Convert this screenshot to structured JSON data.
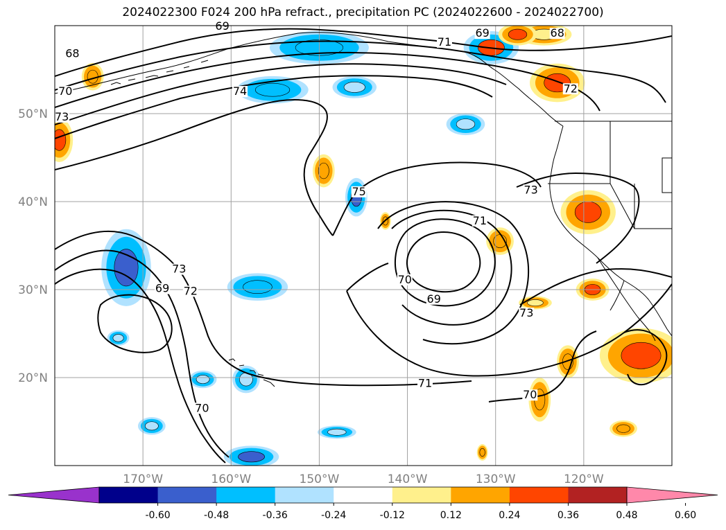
{
  "title": "2024022300 F024 200 hPa refract., precipitation PC (2024022600 - 2024022700)",
  "map": {
    "lon_range": [
      -180,
      -110
    ],
    "lat_range": [
      10,
      60
    ],
    "lon_ticks": [
      {
        "lon": -170,
        "label": "170°W"
      },
      {
        "lon": -160,
        "label": "160°W"
      },
      {
        "lon": -150,
        "label": "150°W"
      },
      {
        "lon": -140,
        "label": "140°W"
      },
      {
        "lon": -130,
        "label": "130°W"
      },
      {
        "lon": -120,
        "label": "120°W"
      }
    ],
    "lat_ticks": [
      {
        "lat": 20,
        "label": "20°N"
      },
      {
        "lat": 30,
        "label": "30°N"
      },
      {
        "lat": 40,
        "label": "40°N"
      },
      {
        "lat": 50,
        "label": "50°N"
      }
    ],
    "grid": true
  },
  "contour_labels": [
    {
      "text": "69",
      "lon": -161.0,
      "lat": 59.6
    },
    {
      "text": "68",
      "lon": -178.0,
      "lat": 56.5
    },
    {
      "text": "70",
      "lon": -178.8,
      "lat": 52.2
    },
    {
      "text": "73",
      "lon": -179.2,
      "lat": 49.3
    },
    {
      "text": "74",
      "lon": -159.0,
      "lat": 52.2
    },
    {
      "text": "71",
      "lon": -135.8,
      "lat": 57.8
    },
    {
      "text": "69",
      "lon": -131.5,
      "lat": 58.8
    },
    {
      "text": "68",
      "lon": -123.0,
      "lat": 58.8
    },
    {
      "text": "72",
      "lon": -121.5,
      "lat": 52.5
    },
    {
      "text": "75",
      "lon": -145.5,
      "lat": 40.8
    },
    {
      "text": "73",
      "lon": -126.0,
      "lat": 41.0
    },
    {
      "text": "71",
      "lon": -131.8,
      "lat": 37.5
    },
    {
      "text": "70",
      "lon": -140.3,
      "lat": 30.8
    },
    {
      "text": "69",
      "lon": -137.0,
      "lat": 28.6
    },
    {
      "text": "73",
      "lon": -126.5,
      "lat": 27.0
    },
    {
      "text": "73",
      "lon": -165.9,
      "lat": 32.0
    },
    {
      "text": "72",
      "lon": -164.6,
      "lat": 29.5
    },
    {
      "text": "69",
      "lon": -167.8,
      "lat": 29.8
    },
    {
      "text": "70",
      "lon": -163.3,
      "lat": 16.2
    },
    {
      "text": "71",
      "lon": -138.0,
      "lat": 19.0
    },
    {
      "text": "70",
      "lon": -126.1,
      "lat": 17.7
    }
  ],
  "colorbar": {
    "ticks": [
      "-0.60",
      "-0.48",
      "-0.36",
      "-0.24",
      "-0.12",
      "0.12",
      "0.24",
      "0.36",
      "0.48",
      "0.60"
    ],
    "colors": [
      "#9932cc",
      "#00008b",
      "#3a5fcd",
      "#00bfff",
      "#b0e2ff",
      "#ffffff",
      "#fff08c",
      "#ffa500",
      "#ff4500",
      "#b22222",
      "#ff88aa"
    ],
    "extend": "both"
  },
  "shading": [
    {
      "lon": -171.9,
      "lat": 32.5,
      "w": 4.5,
      "h": 7,
      "level": "-0.48"
    },
    {
      "lon": -157.0,
      "lat": 30.3,
      "w": 5.5,
      "h": 2.5,
      "level": "-0.36"
    },
    {
      "lon": -145.8,
      "lat": 40.5,
      "w": 2.0,
      "h": 3.5,
      "level": "-0.48"
    },
    {
      "lon": -155.3,
      "lat": 52.7,
      "w": 6.5,
      "h": 2.5,
      "level": "-0.36"
    },
    {
      "lon": -146.0,
      "lat": 53.0,
      "w": 4.0,
      "h": 2.0,
      "level": "-0.24"
    },
    {
      "lon": -133.4,
      "lat": 48.8,
      "w": 3.5,
      "h": 2.0,
      "level": "-0.24"
    },
    {
      "lon": -150.0,
      "lat": 57.5,
      "w": 9.0,
      "h": 3.0,
      "level": "-0.36"
    },
    {
      "lon": -158.3,
      "lat": 19.8,
      "w": 2.5,
      "h": 2.5,
      "level": "-0.24"
    },
    {
      "lon": -163.2,
      "lat": 19.8,
      "w": 2.5,
      "h": 1.6,
      "level": "-0.24"
    },
    {
      "lon": -157.7,
      "lat": 11.0,
      "w": 5.0,
      "h": 2.0,
      "level": "-0.48"
    },
    {
      "lon": -169.0,
      "lat": 14.5,
      "w": 2.5,
      "h": 1.6,
      "level": "-0.24"
    },
    {
      "lon": -172.8,
      "lat": 24.5,
      "w": 2.0,
      "h": 1.4,
      "level": "-0.24"
    },
    {
      "lon": -148.0,
      "lat": 13.8,
      "w": 3.5,
      "h": 1.2,
      "level": "-0.24"
    },
    {
      "lon": -130.5,
      "lat": 57.5,
      "w": 5.0,
      "h": 3.0,
      "level": "-0.36+"
    },
    {
      "lon": -123.0,
      "lat": 53.5,
      "w": 5.0,
      "h": 3.5,
      "level": "0.36"
    },
    {
      "lon": -175.7,
      "lat": 54.2,
      "w": 2.0,
      "h": 2.5,
      "level": "0.24"
    },
    {
      "lon": -179.5,
      "lat": 47.0,
      "w": 2.5,
      "h": 4.0,
      "level": "0.36"
    },
    {
      "lon": -119.5,
      "lat": 38.8,
      "w": 5.0,
      "h": 4.0,
      "level": "0.36"
    },
    {
      "lon": -113.5,
      "lat": 22.5,
      "w": 7.5,
      "h": 5.0,
      "level": "0.36"
    },
    {
      "lon": -125.0,
      "lat": 17.5,
      "w": 2.0,
      "h": 4.0,
      "level": "0.24"
    },
    {
      "lon": -129.5,
      "lat": 35.5,
      "w": 2.5,
      "h": 2.5,
      "level": "0.24"
    },
    {
      "lon": -119.0,
      "lat": 30.0,
      "w": 3.0,
      "h": 2.0,
      "level": "0.36"
    },
    {
      "lon": -149.5,
      "lat": 43.5,
      "w": 2.0,
      "h": 3.0,
      "level": "0.24"
    },
    {
      "lon": -121.8,
      "lat": 21.8,
      "w": 2.0,
      "h": 3.0,
      "level": "0.24"
    },
    {
      "lon": -115.5,
      "lat": 14.2,
      "w": 2.5,
      "h": 1.5,
      "level": "0.24"
    },
    {
      "lon": -131.5,
      "lat": 11.5,
      "w": 1.0,
      "h": 1.5,
      "level": "0.24"
    },
    {
      "lon": -142.5,
      "lat": 37.8,
      "w": 1.0,
      "h": 1.6,
      "level": "0.24"
    },
    {
      "lon": -125.5,
      "lat": 28.5,
      "w": 3.0,
      "h": 1.2,
      "level": "0.12"
    },
    {
      "lon": -124.5,
      "lat": 59.0,
      "w": 5.0,
      "h": 2.0,
      "level": "0.12"
    },
    {
      "lon": -127.5,
      "lat": 59.0,
      "w": 3.5,
      "h": 2.0,
      "level": "0.36"
    }
  ]
}
